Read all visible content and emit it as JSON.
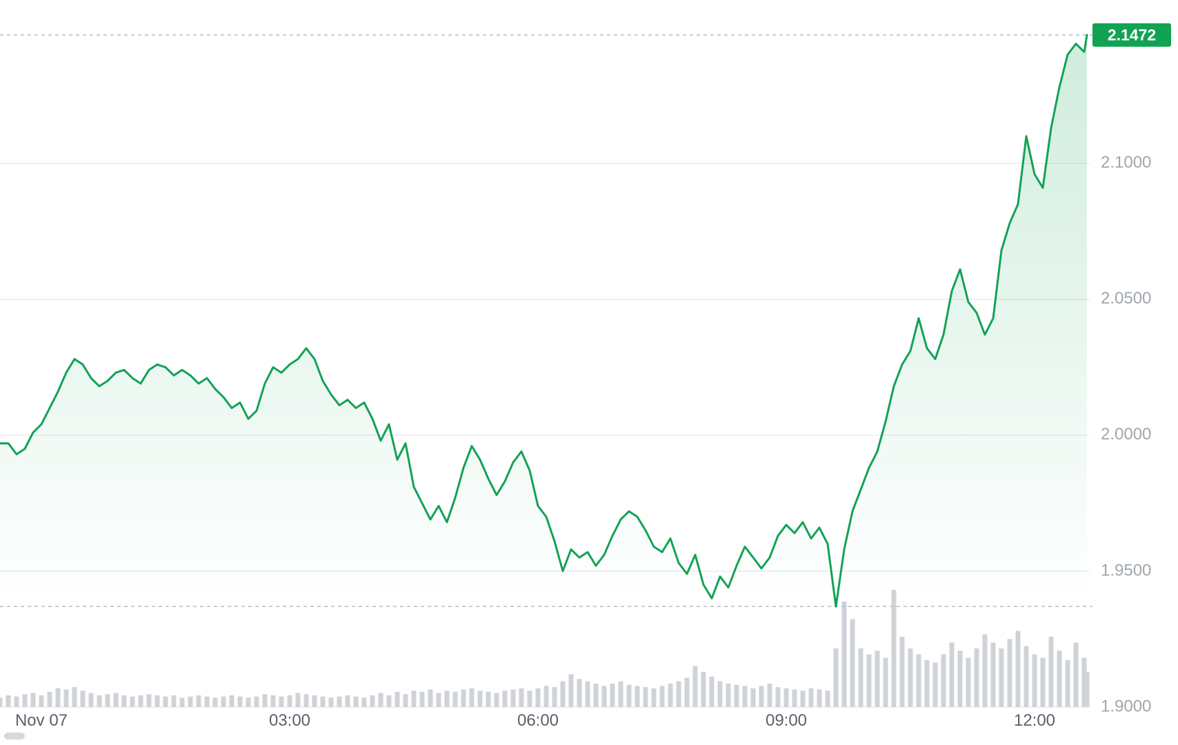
{
  "chart_data": {
    "type": "area",
    "title": "",
    "symbol_context": "intraday price with volume",
    "x_unit": "minutes from Nov 07 00:00",
    "xlim": [
      -30,
      760
    ],
    "ylim": [
      1.9,
      2.155
    ],
    "grid": "horizontal",
    "legend": null,
    "x_ticks": [
      {
        "t": 0,
        "label": "Nov 07"
      },
      {
        "t": 180,
        "label": "03:00"
      },
      {
        "t": 360,
        "label": "06:00"
      },
      {
        "t": 540,
        "label": "09:00"
      },
      {
        "t": 720,
        "label": "12:00"
      }
    ],
    "y_ticks": [
      {
        "v": 2.1,
        "label": "2.1000"
      },
      {
        "v": 2.05,
        "label": "2.0500"
      },
      {
        "v": 2.0,
        "label": "2.0000"
      },
      {
        "v": 1.95,
        "label": "1.9500"
      },
      {
        "v": 1.9,
        "label": "1.9000"
      }
    ],
    "last_price": 2.1472,
    "last_price_label": "2.1472",
    "dashed_levels": [
      2.1472,
      1.937
    ],
    "t": [
      -30,
      -24,
      -18,
      -12,
      -6,
      0,
      6,
      12,
      18,
      24,
      30,
      36,
      42,
      48,
      54,
      60,
      66,
      72,
      78,
      84,
      90,
      96,
      102,
      108,
      114,
      120,
      126,
      132,
      138,
      144,
      150,
      156,
      162,
      168,
      174,
      180,
      186,
      192,
      198,
      204,
      210,
      216,
      222,
      228,
      234,
      240,
      246,
      252,
      258,
      264,
      270,
      276,
      282,
      288,
      294,
      300,
      306,
      312,
      318,
      324,
      330,
      336,
      342,
      348,
      354,
      360,
      366,
      372,
      378,
      384,
      390,
      396,
      402,
      408,
      414,
      420,
      426,
      432,
      438,
      444,
      450,
      456,
      462,
      468,
      474,
      480,
      486,
      492,
      498,
      504,
      510,
      516,
      522,
      528,
      534,
      540,
      546,
      552,
      558,
      564,
      570,
      576,
      582,
      588,
      594,
      600,
      606,
      612,
      618,
      624,
      630,
      636,
      642,
      648,
      654,
      660,
      666,
      672,
      678,
      684,
      690,
      696,
      702,
      708,
      714,
      720,
      726,
      732,
      738,
      744,
      750,
      756,
      758
    ],
    "price": [
      1.997,
      1.997,
      1.993,
      1.995,
      2.001,
      2.004,
      2.01,
      2.016,
      2.023,
      2.028,
      2.026,
      2.021,
      2.018,
      2.02,
      2.023,
      2.024,
      2.021,
      2.019,
      2.024,
      2.026,
      2.025,
      2.022,
      2.024,
      2.022,
      2.019,
      2.021,
      2.017,
      2.014,
      2.01,
      2.012,
      2.006,
      2.009,
      2.019,
      2.025,
      2.023,
      2.026,
      2.028,
      2.032,
      2.028,
      2.02,
      2.015,
      2.011,
      2.013,
      2.01,
      2.012,
      2.006,
      1.998,
      2.004,
      1.991,
      1.997,
      1.981,
      1.975,
      1.969,
      1.974,
      1.968,
      1.977,
      1.988,
      1.996,
      1.991,
      1.984,
      1.978,
      1.983,
      1.99,
      1.994,
      1.987,
      1.974,
      1.97,
      1.961,
      1.95,
      1.958,
      1.955,
      1.957,
      1.952,
      1.956,
      1.963,
      1.969,
      1.972,
      1.97,
      1.965,
      1.959,
      1.957,
      1.962,
      1.953,
      1.949,
      1.956,
      1.945,
      1.94,
      1.948,
      1.944,
      1.952,
      1.959,
      1.955,
      1.951,
      1.955,
      1.963,
      1.967,
      1.964,
      1.968,
      1.962,
      1.966,
      1.96,
      1.937,
      1.958,
      1.972,
      1.98,
      1.988,
      1.994,
      2.005,
      2.018,
      2.026,
      2.031,
      2.043,
      2.032,
      2.028,
      2.037,
      2.053,
      2.061,
      2.049,
      2.045,
      2.037,
      2.043,
      2.068,
      2.078,
      2.085,
      2.11,
      2.096,
      2.091,
      2.113,
      2.128,
      2.14,
      2.144,
      2.141,
      2.1472
    ],
    "volume_rel": [
      0.08,
      0.1,
      0.09,
      0.11,
      0.12,
      0.1,
      0.13,
      0.16,
      0.15,
      0.17,
      0.14,
      0.12,
      0.1,
      0.11,
      0.12,
      0.1,
      0.09,
      0.1,
      0.11,
      0.1,
      0.09,
      0.1,
      0.08,
      0.09,
      0.1,
      0.09,
      0.08,
      0.09,
      0.1,
      0.09,
      0.08,
      0.09,
      0.11,
      0.1,
      0.09,
      0.1,
      0.12,
      0.11,
      0.1,
      0.09,
      0.08,
      0.09,
      0.1,
      0.09,
      0.08,
      0.1,
      0.12,
      0.1,
      0.13,
      0.11,
      0.14,
      0.13,
      0.15,
      0.12,
      0.14,
      0.13,
      0.15,
      0.16,
      0.14,
      0.13,
      0.12,
      0.14,
      0.15,
      0.16,
      0.14,
      0.16,
      0.18,
      0.17,
      0.22,
      0.28,
      0.24,
      0.22,
      0.2,
      0.18,
      0.2,
      0.22,
      0.19,
      0.18,
      0.17,
      0.16,
      0.18,
      0.2,
      0.22,
      0.25,
      0.35,
      0.3,
      0.26,
      0.22,
      0.2,
      0.19,
      0.18,
      0.16,
      0.18,
      0.2,
      0.17,
      0.16,
      0.15,
      0.14,
      0.16,
      0.15,
      0.14,
      0.5,
      0.9,
      0.75,
      0.5,
      0.45,
      0.48,
      0.42,
      1.0,
      0.6,
      0.5,
      0.45,
      0.4,
      0.38,
      0.45,
      0.55,
      0.48,
      0.42,
      0.5,
      0.62,
      0.55,
      0.5,
      0.58,
      0.65,
      0.52,
      0.45,
      0.42,
      0.6,
      0.48,
      0.4,
      0.55,
      0.42,
      0.3
    ],
    "colors": {
      "line": "#12a254",
      "area_top": "rgba(18,162,84,0.20)",
      "area_bottom": "rgba(18,162,84,0.0)",
      "volume": "#cfd3d8",
      "grid": "#ebedef",
      "dashed": "#b7bcc2",
      "badge_bg": "#12a254",
      "badge_text": "#ffffff",
      "y_label": "#a0a6ac",
      "x_label": "#5a616a"
    }
  }
}
